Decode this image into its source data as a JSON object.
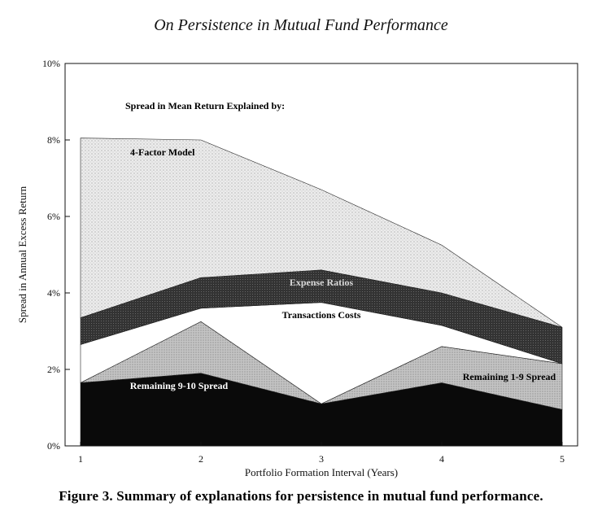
{
  "header": {
    "running_title": "On Persistence in Mutual Fund Performance"
  },
  "figure": {
    "caption": "Figure 3. Summary of explanations for persistence in mutual fund performance."
  },
  "chart_data": {
    "type": "area",
    "stacked": true,
    "x": [
      1,
      2,
      3,
      4,
      5
    ],
    "xlabel": "Portfolio Formation Interval (Years)",
    "ylabel": "Spread in Annual Excess Return",
    "ylim": [
      0,
      10
    ],
    "yticks": [
      "0%",
      "2%",
      "4%",
      "6%",
      "8%",
      "10%"
    ],
    "xticks": [
      "1",
      "2",
      "3",
      "4",
      "5"
    ],
    "annotations": {
      "heading": "Spread in Mean Return Explained by:"
    },
    "series": [
      {
        "name": "Remaining 9-10 Spread",
        "values": [
          1.65,
          1.9,
          1.1,
          1.65,
          0.95
        ],
        "color": "#0a0a0a",
        "label_color": "#ffffff"
      },
      {
        "name": "Remaining 1-9 Spread",
        "values": [
          0.0,
          1.35,
          0.0,
          0.95,
          1.2
        ],
        "color": "#bdbdbd",
        "label_color": "#000000"
      },
      {
        "name": "Transactions Costs",
        "values": [
          1.0,
          0.35,
          2.65,
          0.55,
          0.0
        ],
        "color": "#ffffff",
        "label_color": "#000000"
      },
      {
        "name": "Expense Ratios",
        "values": [
          0.7,
          0.8,
          0.85,
          0.85,
          0.95
        ],
        "color": "#3a3a3a",
        "label_color": "#d8d8d8"
      },
      {
        "name": "4-Factor Model",
        "values": [
          4.7,
          3.6,
          2.1,
          1.25,
          0.0
        ],
        "color": "#e6e6e6",
        "label_color": "#000000"
      }
    ]
  }
}
